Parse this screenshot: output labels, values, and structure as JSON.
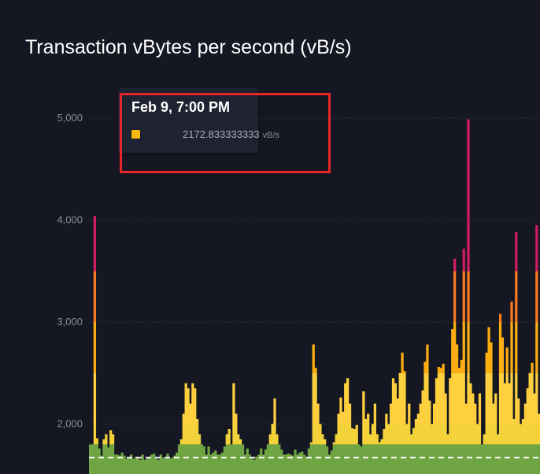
{
  "chart_data": {
    "type": "bar",
    "title": "Transaction vBytes per second (vB/s)",
    "ylim": [
      1650,
      5050
    ],
    "yticks": [
      2000,
      3000,
      4000,
      5000
    ],
    "ytick_labels": [
      "2,000",
      "3,000",
      "4,000",
      "5,000"
    ],
    "grid": true,
    "reference_line": 1670,
    "fee_band_thresholds": [
      1800,
      2000,
      2500,
      3000,
      3500
    ],
    "fee_band_colors": [
      "#6fa543",
      "#f3d23a",
      "#ffd03e",
      "#ffae12",
      "#fb7a1e",
      "#d11d60"
    ],
    "values": [
      1800,
      1800,
      4040,
      1860,
      1760,
      1690,
      1850,
      1900,
      1770,
      1940,
      1900,
      1700,
      1700,
      1690,
      1720,
      1690,
      1660,
      1670,
      1700,
      1660,
      1680,
      1660,
      1650,
      1700,
      1650,
      1660,
      1680,
      1700,
      1710,
      1660,
      1650,
      1700,
      1670,
      1660,
      1710,
      1660,
      1670,
      1690,
      1720,
      1800,
      1850,
      2100,
      2400,
      2350,
      2200,
      2400,
      2350,
      2050,
      1900,
      1800,
      1780,
      1700,
      1780,
      1700,
      1720,
      1740,
      1700,
      1700,
      1720,
      1780,
      1900,
      1950,
      1800,
      2400,
      2100,
      1900,
      1850,
      1800,
      1700,
      1760,
      1700,
      1660,
      1650,
      1680,
      1700,
      1760,
      1700,
      1750,
      1800,
      1900,
      2000,
      2250,
      1900,
      1800,
      1750,
      1700,
      1700,
      1710,
      1700,
      1690,
      1750,
      1700,
      1720,
      1730,
      1700,
      1680,
      1760,
      1820,
      2780,
      2550,
      2200,
      2000,
      1900,
      1850,
      1780,
      1700,
      1740,
      1820,
      1900,
      2100,
      2260,
      2120,
      2400,
      2450,
      2200,
      1960,
      1950,
      1990,
      1800,
      1780,
      2320,
      2050,
      2100,
      1900,
      2000,
      2200,
      1900,
      1820,
      1850,
      1950,
      2100,
      2000,
      2200,
      2450,
      2400,
      2250,
      2500,
      2700,
      2520,
      2000,
      2200,
      1900,
      1960,
      2050,
      2100,
      2200,
      2330,
      2610,
      2780,
      2230,
      2000,
      2200,
      2450,
      2560,
      2550,
      2590,
      2300,
      1900,
      2450,
      2930,
      3620,
      2780,
      2550,
      2630,
      3720,
      2200,
      4990,
      2400,
      2300,
      2200,
      2000,
      2300,
      1800,
      1900,
      2700,
      2950,
      2800,
      2200,
      2300,
      1900,
      3080,
      2850,
      2400,
      2750,
      2400,
      3200,
      2050,
      3880,
      2250,
      2000,
      2050,
      2200,
      2350,
      2500,
      2600,
      2300,
      3950,
      2100
    ]
  },
  "tooltip": {
    "date": "Feb 9, 7:00 PM",
    "value": "2172.833333333",
    "unit": "vB/s",
    "swatch_color": "#ffb80b"
  }
}
